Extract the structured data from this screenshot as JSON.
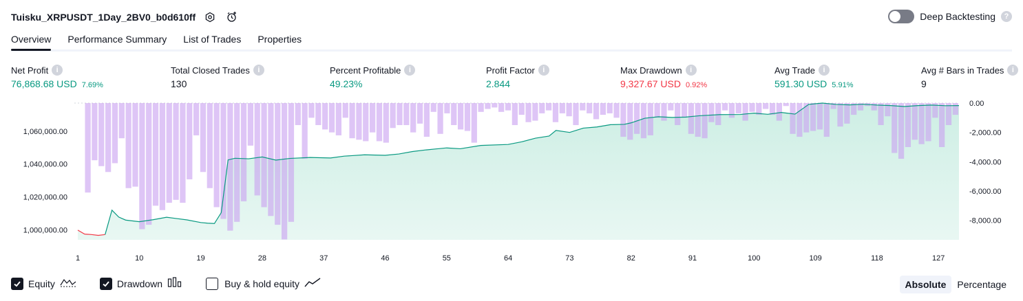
{
  "header": {
    "title": "Tuisku_XRPUSDT_1Day_2BV0_b0d610ff",
    "deep_backtesting_label": "Deep Backtesting",
    "help_glyph": "?"
  },
  "tabs": [
    {
      "label": "Overview",
      "active": true
    },
    {
      "label": "Performance Summary",
      "active": false
    },
    {
      "label": "List of Trades",
      "active": false
    },
    {
      "label": "Properties",
      "active": false
    }
  ],
  "metrics": [
    {
      "label": "Net Profit",
      "value": "76,868.68 USD",
      "pct": "7.69%",
      "color": "#089981"
    },
    {
      "label": "Total Closed Trades",
      "value": "130",
      "pct": "",
      "color": "#131722"
    },
    {
      "label": "Percent Profitable",
      "value": "49.23%",
      "pct": "",
      "color": "#089981"
    },
    {
      "label": "Profit Factor",
      "value": "2.844",
      "pct": "",
      "color": "#089981"
    },
    {
      "label": "Max Drawdown",
      "value": "9,327.67 USD",
      "pct": "0.92%",
      "color": "#f23645"
    },
    {
      "label": "Avg Trade",
      "value": "591.30 USD",
      "pct": "5.91%",
      "color": "#089981"
    },
    {
      "label": "Avg # Bars in Trades",
      "value": "9",
      "pct": "",
      "color": "#131722"
    }
  ],
  "chart_data": {
    "type": "area",
    "x_ticks": [
      "1",
      "10",
      "19",
      "28",
      "37",
      "46",
      "55",
      "64",
      "73",
      "82",
      "91",
      "100",
      "109",
      "118",
      "127"
    ],
    "left_axis": {
      "ticks": [
        "1,060,000.00",
        "1,040,000.00",
        "1,020,000.00",
        "1,000,000.00"
      ],
      "values": [
        1060000,
        1040000,
        1020000,
        1000000
      ],
      "ylim": [
        994000,
        1077000
      ]
    },
    "right_axis": {
      "ticks": [
        "0.00",
        "-2,000.00",
        "-4,000.00",
        "-6,000.00",
        "-8,000.00"
      ],
      "values": [
        0,
        -2000,
        -4000,
        -6000,
        -8000
      ],
      "ylim": [
        -9327.67,
        0
      ]
    },
    "trade_range": [
      1,
      130
    ],
    "series": [
      {
        "name": "Equity",
        "color": "#089981",
        "fill": "#cdeee4",
        "loss_color": "#f23645",
        "x": [
          1,
          2,
          3,
          4,
          5,
          6,
          7,
          8,
          10,
          12,
          14,
          17,
          19,
          20,
          21,
          22,
          23,
          24,
          26,
          28,
          30,
          32,
          35,
          38,
          40,
          43,
          46,
          48,
          50,
          52,
          55,
          57,
          60,
          64,
          66,
          68,
          70,
          71,
          73,
          75,
          77,
          79,
          81,
          82,
          84,
          86,
          88,
          90,
          92,
          95,
          98,
          100,
          102,
          104,
          106,
          108,
          110,
          112,
          114,
          116,
          118,
          120,
          122,
          124,
          126,
          128,
          130
        ],
        "y": [
          999900,
          997500,
          997200,
          996700,
          997200,
          1012000,
          1007800,
          1006000,
          1005000,
          1006200,
          1007700,
          1006100,
          1004500,
          1004100,
          1003900,
          1010500,
          1042500,
          1043500,
          1043200,
          1044300,
          1042400,
          1043400,
          1044000,
          1043700,
          1044800,
          1045600,
          1045300,
          1046100,
          1047600,
          1048600,
          1049800,
          1049300,
          1051300,
          1051900,
          1053500,
          1055700,
          1057000,
          1060400,
          1059200,
          1061800,
          1062500,
          1063900,
          1064100,
          1065000,
          1067800,
          1068700,
          1068300,
          1068500,
          1069300,
          1070000,
          1070100,
          1070900,
          1070200,
          1071300,
          1070300,
          1076200,
          1077000,
          1076200,
          1075900,
          1076300,
          1075800,
          1075500,
          1074900,
          1075500,
          1075800,
          1075400,
          1075500
        ]
      },
      {
        "name": "Drawdown",
        "color": "#c9a2f0",
        "values": [
          0,
          -6100,
          -3900,
          -4300,
          -4700,
          -4100,
          -2400,
          -5800,
          -5700,
          -8600,
          -8300,
          -7000,
          -7300,
          -6800,
          -6600,
          -6800,
          -5200,
          -2200,
          -4700,
          -5800,
          -7100,
          -7900,
          -8700,
          -8100,
          -6700,
          -2900,
          -6300,
          -7100,
          -7700,
          -8300,
          -9300,
          -8100,
          -1500,
          -3800,
          -1000,
          -1500,
          -1800,
          -2000,
          -2200,
          -1000,
          -2400,
          -2500,
          -2600,
          -2000,
          -2600,
          -2700,
          -1700,
          -1500,
          -1500,
          -2000,
          -1400,
          -2300,
          -600,
          -2100,
          -700,
          -1500,
          -1800,
          -1900,
          -2700,
          -600,
          -400,
          -300,
          -600,
          -500,
          -1500,
          -800,
          -1300,
          -1200,
          -700,
          -500,
          -1300,
          -700,
          -900,
          -1500,
          -500,
          -700,
          -1100,
          -800,
          -700,
          -1000,
          -2300,
          -2500,
          -2100,
          -2400,
          -2200,
          -1000,
          -1200,
          -500,
          -1500,
          -1000,
          -2100,
          -2300,
          -2400,
          -1300,
          -1500,
          -500,
          -1000,
          -700,
          -1200,
          -600,
          -800,
          -400,
          -800,
          -1200,
          -200,
          -2100,
          -2300,
          -2000,
          -1900,
          -1800,
          -2300,
          -400,
          -1600,
          -1400,
          -800,
          -500,
          -200,
          -500,
          -1500,
          -900,
          -3400,
          -3800,
          -3000,
          -2500,
          -2800,
          -2600,
          -1000,
          -3000,
          -1500,
          -800
        ],
        "scale": "right"
      }
    ]
  },
  "legend": {
    "items": [
      {
        "label": "Equity",
        "checked": true,
        "icon": "equity-line-icon"
      },
      {
        "label": "Drawdown",
        "checked": true,
        "icon": "drawdown-bars-icon"
      },
      {
        "label": "Buy & hold equity",
        "checked": false,
        "icon": "buy-hold-line-icon"
      }
    ],
    "modes": [
      {
        "label": "Absolute",
        "active": true
      },
      {
        "label": "Percentage",
        "active": false
      }
    ]
  }
}
